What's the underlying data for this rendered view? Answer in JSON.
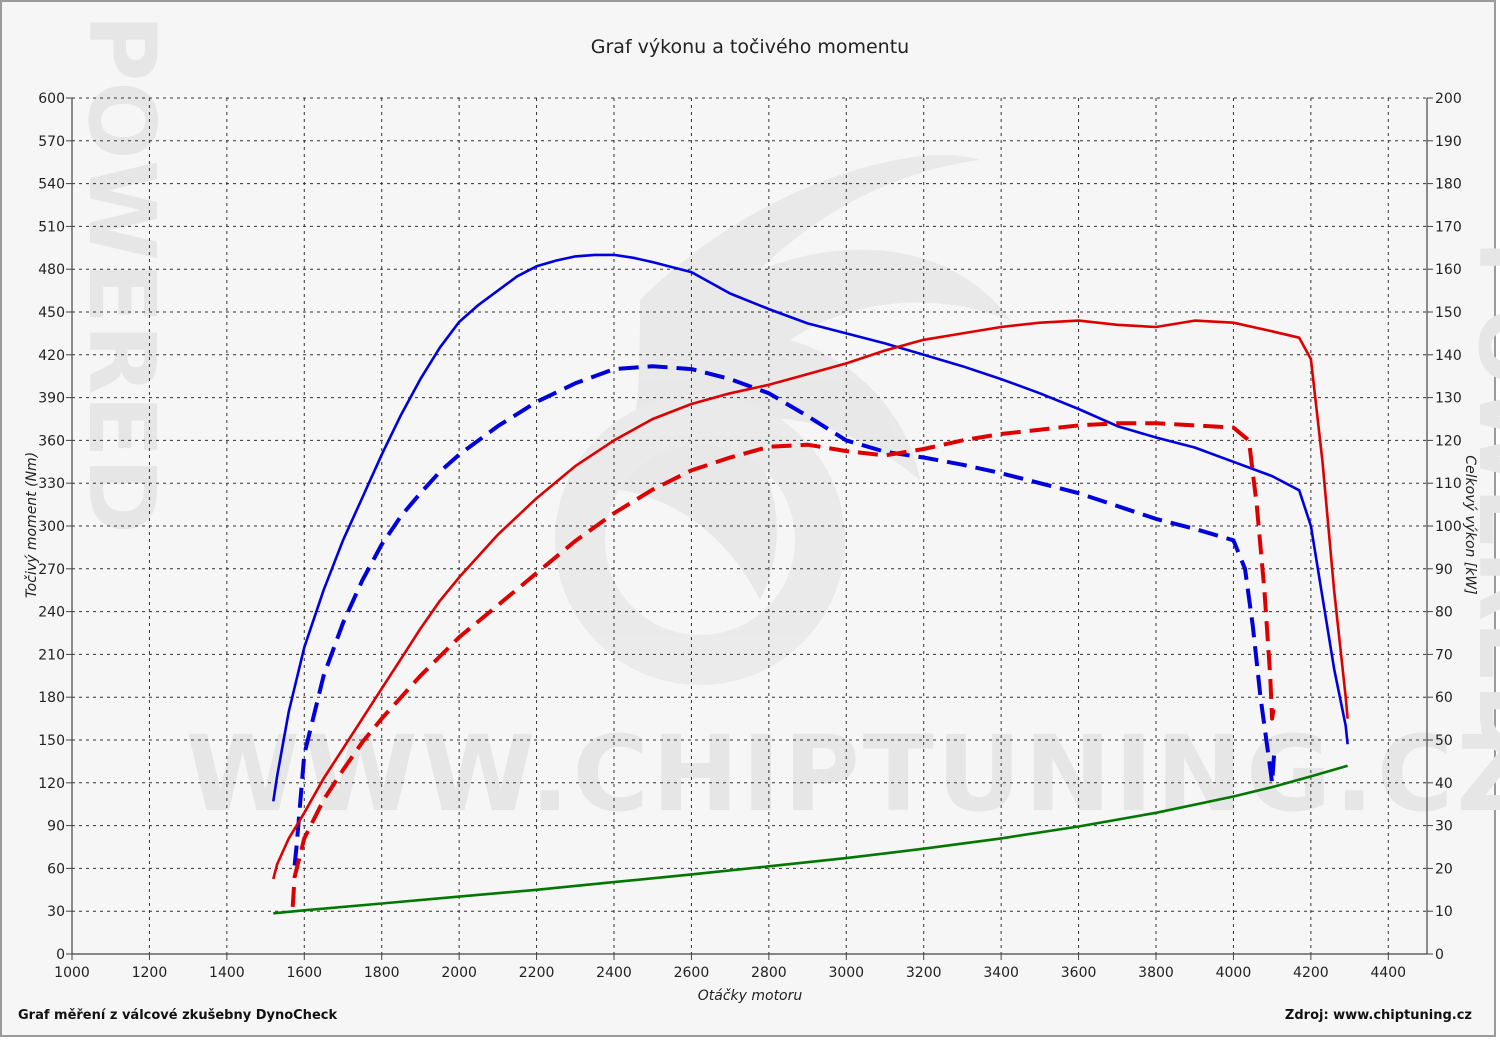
{
  "chart_data": {
    "type": "line",
    "title": "Graf výkonu a točivého momentu",
    "xlabel": "Otáčky motoru",
    "ylabel_left": "Točivý moment (Nm)",
    "ylabel_right": "Celkový výkon [kW]",
    "xlim": [
      1000,
      4500
    ],
    "ylim_left": [
      0,
      600
    ],
    "ylim_right": [
      0,
      200
    ],
    "x_ticks": [
      1000,
      1200,
      1400,
      1600,
      1800,
      2000,
      2200,
      2400,
      2600,
      2800,
      3000,
      3200,
      3400,
      3600,
      3800,
      4000,
      4200,
      4400
    ],
    "y_left_ticks": [
      0,
      30,
      60,
      90,
      120,
      150,
      180,
      210,
      240,
      270,
      300,
      330,
      360,
      390,
      420,
      450,
      480,
      510,
      540,
      570,
      600
    ],
    "y_right_ticks": [
      0,
      10,
      20,
      30,
      40,
      50,
      60,
      70,
      80,
      90,
      100,
      110,
      120,
      130,
      140,
      150,
      160,
      170,
      180,
      190,
      200
    ],
    "grid": true,
    "series": [
      {
        "color": "#0000dd",
        "style": "solid",
        "axis": "left",
        "x": [
          1520,
          1530,
          1560,
          1600,
          1650,
          1700,
          1750,
          1800,
          1850,
          1900,
          1950,
          2000,
          2050,
          2100,
          2150,
          2200,
          2250,
          2300,
          2350,
          2400,
          2450,
          2500,
          2600,
          2700,
          2800,
          2900,
          3000,
          3100,
          3200,
          3300,
          3400,
          3500,
          3600,
          3700,
          3800,
          3900,
          4000,
          4100,
          4170,
          4200,
          4230,
          4260,
          4290,
          4295
        ],
        "y": [
          107,
          125,
          170,
          215,
          255,
          290,
          320,
          350,
          378,
          403,
          425,
          443,
          455,
          465,
          475,
          482,
          486,
          489,
          490,
          490,
          488,
          485,
          478,
          463,
          452,
          442,
          435,
          428,
          420,
          412,
          403,
          393,
          382,
          370,
          362,
          355,
          345,
          335,
          325,
          300,
          250,
          200,
          160,
          147
        ]
      },
      {
        "color": "#0000dd",
        "style": "dashed",
        "axis": "left",
        "x": [
          1575,
          1580,
          1600,
          1650,
          1700,
          1750,
          1800,
          1850,
          1900,
          1950,
          2000,
          2100,
          2200,
          2300,
          2400,
          2500,
          2600,
          2700,
          2800,
          2900,
          3000,
          3100,
          3200,
          3300,
          3400,
          3500,
          3600,
          3700,
          3800,
          3900,
          4000,
          4030,
          4050,
          4070,
          4090,
          4100,
          4105
        ],
        "y": [
          62,
          75,
          140,
          195,
          232,
          262,
          287,
          307,
          323,
          338,
          350,
          370,
          387,
          400,
          410,
          412,
          410,
          403,
          393,
          377,
          360,
          352,
          348,
          343,
          337,
          330,
          323,
          314,
          305,
          298,
          290,
          270,
          230,
          180,
          140,
          120,
          140
        ]
      },
      {
        "color": "#dd0000",
        "style": "solid",
        "axis": "right",
        "x": [
          1520,
          1530,
          1560,
          1600,
          1650,
          1700,
          1750,
          1800,
          1850,
          1900,
          1950,
          2000,
          2100,
          2200,
          2300,
          2400,
          2500,
          2600,
          2700,
          2800,
          2900,
          3000,
          3100,
          3200,
          3300,
          3400,
          3500,
          3600,
          3700,
          3800,
          3900,
          4000,
          4100,
          4170,
          4200,
          4230,
          4260,
          4290,
          4295
        ],
        "y": [
          17.5,
          21,
          27,
          33,
          41,
          48,
          55,
          62,
          69,
          76,
          82.5,
          88,
          98,
          106.5,
          114,
          120,
          125,
          128.5,
          131,
          133,
          135.5,
          138,
          141,
          143.5,
          145,
          146.5,
          147.5,
          148,
          147,
          146.5,
          148,
          147.5,
          145.5,
          144,
          139,
          115,
          85,
          60,
          55
        ]
      },
      {
        "color": "#dd0000",
        "style": "dashed",
        "axis": "right",
        "x": [
          1570,
          1575,
          1600,
          1650,
          1700,
          1750,
          1800,
          1850,
          1900,
          1950,
          2000,
          2100,
          2200,
          2300,
          2400,
          2500,
          2600,
          2700,
          2800,
          2900,
          3000,
          3100,
          3200,
          3300,
          3400,
          3500,
          3600,
          3700,
          3800,
          3900,
          4000,
          4040,
          4060,
          4080,
          4095,
          4100,
          4105
        ],
        "y": [
          11,
          18,
          27,
          36,
          43,
          49.5,
          55,
          60,
          65,
          69.5,
          74,
          81.5,
          89,
          96.5,
          103,
          108.5,
          113,
          116,
          118.5,
          119,
          117.5,
          116.5,
          118,
          120,
          121.5,
          122.5,
          123.5,
          124,
          124,
          123.5,
          123,
          120,
          105,
          85,
          65,
          55,
          58
        ]
      },
      {
        "color": "#007700",
        "style": "solid",
        "axis": "right",
        "x": [
          1520,
          1600,
          1800,
          2000,
          2200,
          2400,
          2600,
          2800,
          3000,
          3200,
          3400,
          3600,
          3800,
          4000,
          4100,
          4200,
          4295
        ],
        "y": [
          9.5,
          10.2,
          11.8,
          13.4,
          15,
          16.8,
          18.6,
          20.5,
          22.4,
          24.6,
          27,
          29.8,
          33,
          36.8,
          39,
          41.5,
          44
        ]
      }
    ]
  },
  "watermark": {
    "url": "WWW.CHIPTUNING.CZ",
    "side": "POWERED"
  },
  "footer": {
    "left": "Graf měření z válcové zkušebny DynoCheck",
    "right": "Zdroj: www.chiptuning.cz"
  }
}
